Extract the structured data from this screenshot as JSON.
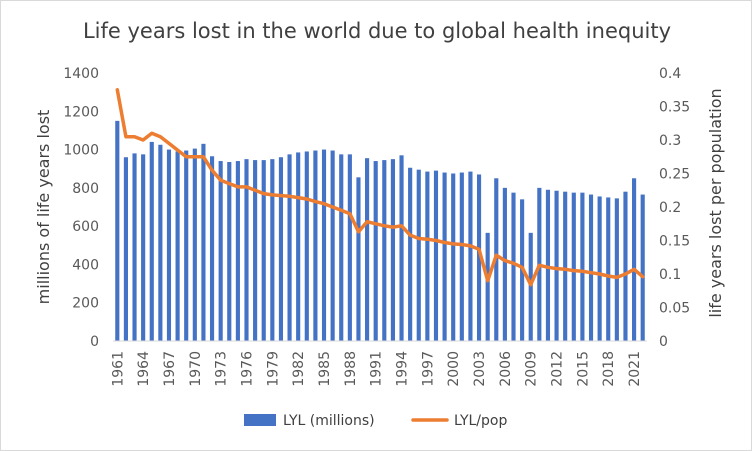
{
  "chart_data": {
    "type": "bar+line",
    "title": "Life years lost in the world due to global health inequity",
    "ylabel": "millions of life years lost",
    "y2label": "life years lost per population",
    "ylim": [
      0,
      1400
    ],
    "y2lim": [
      0,
      0.4
    ],
    "yticks": [
      "0",
      "200",
      "400",
      "600",
      "800",
      "1000",
      "1200",
      "1400"
    ],
    "y2ticks": [
      "0",
      "0.05",
      "0.1",
      "0.15",
      "0.2",
      "0.25",
      "0.3",
      "0.35",
      "0.4"
    ],
    "x": [
      1961,
      1962,
      1963,
      1964,
      1965,
      1966,
      1967,
      1968,
      1969,
      1970,
      1971,
      1972,
      1973,
      1974,
      1975,
      1976,
      1977,
      1978,
      1979,
      1980,
      1981,
      1982,
      1983,
      1984,
      1985,
      1986,
      1987,
      1988,
      1989,
      1990,
      1991,
      1992,
      1993,
      1994,
      1995,
      1996,
      1997,
      1998,
      1999,
      2000,
      2001,
      2002,
      2003,
      2004,
      2005,
      2006,
      2007,
      2008,
      2009,
      2010,
      2011,
      2012,
      2013,
      2014,
      2015,
      2016,
      2017,
      2018,
      2019,
      2020,
      2021,
      2022
    ],
    "xtick_labels": [
      "1961",
      "1964",
      "1967",
      "1970",
      "1973",
      "1976",
      "1979",
      "1982",
      "1985",
      "1988",
      "1991",
      "1994",
      "1997",
      "2000",
      "2003",
      "2006",
      "2009",
      "2012",
      "2015",
      "2018",
      "2021"
    ],
    "grid": false,
    "legend": "bottom",
    "colors": {
      "bar": "#4472c4",
      "line": "#ed7d31"
    },
    "series": [
      {
        "name": "LYL (millions)",
        "type": "bar",
        "axis": "left",
        "values": [
          1150,
          960,
          980,
          975,
          1040,
          1025,
          1000,
          990,
          995,
          1005,
          1030,
          965,
          940,
          935,
          940,
          950,
          945,
          945,
          950,
          960,
          975,
          985,
          990,
          995,
          1000,
          995,
          975,
          975,
          855,
          955,
          940,
          945,
          950,
          970,
          905,
          895,
          885,
          890,
          880,
          875,
          880,
          885,
          870,
          565,
          850,
          800,
          775,
          740,
          565,
          800,
          790,
          785,
          780,
          775,
          775,
          765,
          755,
          750,
          745,
          780,
          850,
          765
        ]
      },
      {
        "name": "LYL/pop",
        "type": "line",
        "axis": "right",
        "values": [
          0.375,
          0.305,
          0.305,
          0.3,
          0.31,
          0.305,
          0.295,
          0.285,
          0.275,
          0.275,
          0.275,
          0.255,
          0.24,
          0.235,
          0.23,
          0.23,
          0.225,
          0.22,
          0.218,
          0.217,
          0.216,
          0.214,
          0.212,
          0.208,
          0.205,
          0.2,
          0.195,
          0.19,
          0.163,
          0.178,
          0.175,
          0.172,
          0.17,
          0.172,
          0.158,
          0.153,
          0.152,
          0.15,
          0.147,
          0.145,
          0.144,
          0.142,
          0.137,
          0.09,
          0.128,
          0.12,
          0.116,
          0.11,
          0.084,
          0.113,
          0.11,
          0.108,
          0.107,
          0.105,
          0.104,
          0.102,
          0.1,
          0.097,
          0.095,
          0.1,
          0.107,
          0.096
        ]
      }
    ]
  }
}
